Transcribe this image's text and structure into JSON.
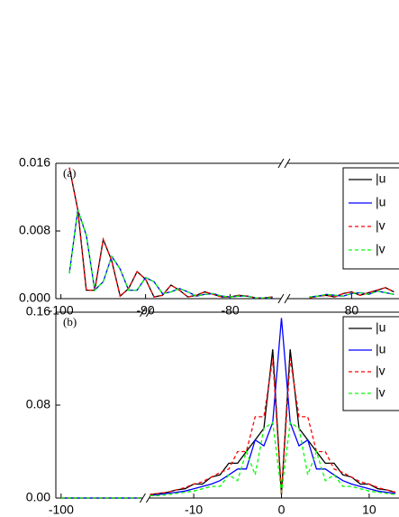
{
  "chart_data": [
    {
      "type": "line",
      "panel_label": "(a)",
      "xlim": [
        [
          -100.6,
          -74
        ],
        [
          72.4,
          85.6
        ]
      ],
      "xticks": [
        -100,
        -90,
        -80,
        80
      ],
      "ylim": [
        0,
        0.016
      ],
      "yticks": [
        {
          "value": 0,
          "label": "0.000"
        },
        {
          "value": 0.008,
          "label": "0.008"
        },
        {
          "value": 0.016,
          "label": "0.016"
        }
      ],
      "legend": "upper right",
      "x": [
        -99,
        -98,
        -97,
        -96,
        -95,
        -94,
        -93,
        -92,
        -91,
        -90,
        -89,
        -88,
        -87,
        -86,
        -85,
        -84,
        -83,
        -82,
        -81,
        -80,
        -79,
        -78,
        -77,
        -76,
        -75,
        75,
        76,
        77,
        78,
        79,
        80,
        81,
        82,
        83,
        84,
        85
      ],
      "series": [
        {
          "name": "|u",
          "color": "#000000",
          "line_style": "solid",
          "values": [
            0.0155,
            0.0105,
            0.001,
            0.001,
            0.007,
            0.0045,
            0.0003,
            0.0012,
            0.0032,
            0.0023,
            0.0002,
            0.0004,
            0.0016,
            0.001,
            0.0002,
            0.0004,
            0.0008,
            0.0005,
            0.0002,
            0.0002,
            0.0004,
            0.0003,
            0.0001,
            0.0001,
            0.0002,
            0.0001,
            0.0003,
            0.0004,
            0.0002,
            0.0006,
            0.0008,
            0.0004,
            0.0007,
            0.001,
            0.0013,
            0.0008
          ]
        },
        {
          "name": "|u",
          "color": "#0000ff",
          "line_style": "solid",
          "values": [
            0.003,
            0.0105,
            0.0075,
            0.001,
            0.002,
            0.005,
            0.0035,
            0.001,
            0.001,
            0.0025,
            0.002,
            0.0006,
            0.0008,
            0.0012,
            0.0008,
            0.0003,
            0.0005,
            0.0006,
            0.0003,
            0.0002,
            0.0003,
            0.0003,
            0.0001,
            0.0001,
            0.0001,
            0.0002,
            0.0003,
            0.0005,
            0.0004,
            0.0003,
            0.0006,
            0.0007,
            0.0005,
            0.0009,
            0.0007,
            0.0005
          ]
        },
        {
          "name": "|v",
          "color": "#ff0000",
          "line_style": "dashed",
          "values": [
            0.0155,
            0.0105,
            0.001,
            0.001,
            0.007,
            0.0045,
            0.0003,
            0.0012,
            0.0032,
            0.0023,
            0.0002,
            0.0004,
            0.0016,
            0.001,
            0.0002,
            0.0004,
            0.0008,
            0.0005,
            0.0002,
            0.0002,
            0.0004,
            0.0003,
            0.0001,
            0.0001,
            0.0002,
            0.0001,
            0.0003,
            0.0004,
            0.0002,
            0.0006,
            0.0008,
            0.0004,
            0.0007,
            0.001,
            0.0013,
            0.0008
          ]
        },
        {
          "name": "|v",
          "color": "#00ff00",
          "line_style": "dashed",
          "values": [
            0.003,
            0.0105,
            0.0075,
            0.001,
            0.002,
            0.005,
            0.0035,
            0.001,
            0.001,
            0.0025,
            0.002,
            0.0006,
            0.0008,
            0.0012,
            0.0008,
            0.0003,
            0.0005,
            0.0006,
            0.0003,
            0.0002,
            0.0003,
            0.0003,
            0.0001,
            0.0001,
            0.0001,
            0.0002,
            0.0003,
            0.0005,
            0.0004,
            0.0003,
            0.0006,
            0.0007,
            0.0005,
            0.0009,
            0.0007,
            0.0005
          ]
        }
      ]
    },
    {
      "type": "line",
      "panel_label": "(b)",
      "xlim": [
        [
          -100.6,
          -90.7
        ],
        [
          -15.1,
          13.4
        ]
      ],
      "xticks": [
        -100,
        -10,
        0,
        10
      ],
      "ylim": [
        0,
        0.16
      ],
      "yticks": [
        {
          "value": 0,
          "label": "0.00"
        },
        {
          "value": 0.08,
          "label": "0.08"
        },
        {
          "value": 0.16,
          "label": "0.16"
        }
      ],
      "legend": "upper right",
      "x": [
        -100,
        -99,
        -98,
        -97,
        -96,
        -95,
        -94,
        -93,
        -92,
        -91,
        -15,
        -14,
        -13,
        -12,
        -11,
        -10,
        -9,
        -8,
        -7,
        -6,
        -5,
        -4,
        -3,
        -2,
        -1,
        0,
        1,
        2,
        3,
        4,
        5,
        6,
        7,
        8,
        9,
        10,
        11,
        12,
        13
      ],
      "series": [
        {
          "name": "|u",
          "color": "#000000",
          "line_style": "solid",
          "values": [
            0,
            0,
            0,
            0,
            0,
            0,
            0,
            0,
            0,
            0,
            0.003,
            0.004,
            0.005,
            0.007,
            0.008,
            0.012,
            0.012,
            0.018,
            0.02,
            0.03,
            0.03,
            0.04,
            0.05,
            0.06,
            0.128,
            0.003,
            0.128,
            0.06,
            0.05,
            0.04,
            0.03,
            0.03,
            0.02,
            0.018,
            0.012,
            0.012,
            0.008,
            0.007,
            0.005
          ]
        },
        {
          "name": "|u",
          "color": "#0000ff",
          "line_style": "solid",
          "values": [
            0,
            0,
            0,
            0,
            0,
            0,
            0,
            0,
            0,
            0,
            0.002,
            0.003,
            0.004,
            0.005,
            0.006,
            0.008,
            0.01,
            0.012,
            0.015,
            0.02,
            0.025,
            0.025,
            0.05,
            0.045,
            0.065,
            0.155,
            0.065,
            0.045,
            0.05,
            0.025,
            0.025,
            0.02,
            0.015,
            0.012,
            0.01,
            0.008,
            0.006,
            0.005,
            0.004
          ]
        },
        {
          "name": "|v",
          "color": "#ff0000",
          "line_style": "dashed",
          "values": [
            0,
            0,
            0,
            0,
            0,
            0,
            0,
            0,
            0,
            0,
            0.003,
            0.004,
            0.005,
            0.007,
            0.009,
            0.012,
            0.014,
            0.018,
            0.022,
            0.025,
            0.04,
            0.04,
            0.07,
            0.07,
            0.12,
            0.003,
            0.12,
            0.07,
            0.07,
            0.04,
            0.04,
            0.025,
            0.022,
            0.018,
            0.014,
            0.012,
            0.009,
            0.007,
            0.005
          ]
        },
        {
          "name": "|v",
          "color": "#00ff00",
          "line_style": "dashed",
          "values": [
            0,
            0,
            0,
            0,
            0,
            0,
            0,
            0,
            0,
            0,
            0.002,
            0.002,
            0.003,
            0.004,
            0.005,
            0.006,
            0.008,
            0.01,
            0.01,
            0.02,
            0.015,
            0.04,
            0.02,
            0.06,
            0.065,
            0.005,
            0.065,
            0.06,
            0.02,
            0.04,
            0.015,
            0.02,
            0.01,
            0.01,
            0.008,
            0.006,
            0.005,
            0.004,
            0.003
          ]
        }
      ]
    }
  ]
}
